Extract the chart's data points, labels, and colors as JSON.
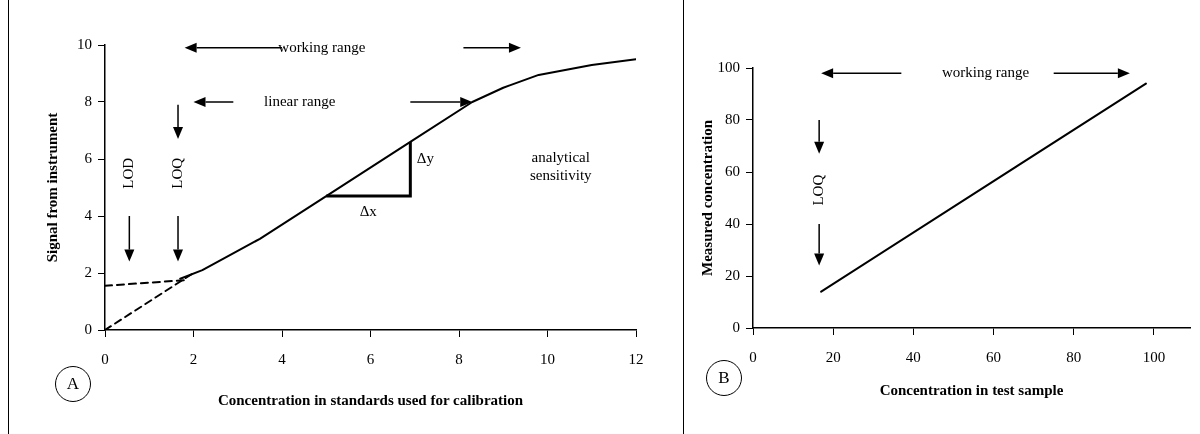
{
  "chart_data": [
    {
      "type": "line",
      "xlabel": "Concentration in standards used for calibration",
      "ylabel": "Signal from instrument",
      "xlim": [
        0,
        12
      ],
      "ylim": [
        0,
        10
      ],
      "xticks": [
        0,
        2,
        4,
        6,
        8,
        10,
        12
      ],
      "yticks": [
        0,
        2,
        4,
        6,
        8,
        10
      ],
      "series": [
        {
          "color": "#000000",
          "line_style": "solid",
          "x": [
            1.7,
            2.2,
            3.5,
            5,
            6.9,
            8.3,
            9,
            9.8,
            11,
            12
          ],
          "values": [
            1.8,
            2.1,
            3.2,
            4.7,
            6.6,
            8,
            8.5,
            8.95,
            9.3,
            9.5
          ]
        },
        {
          "color": "#000000",
          "line_style": "dashed",
          "x": [
            0,
            2
          ],
          "values": [
            0,
            2
          ]
        },
        {
          "color": "#000000",
          "line_style": "dashed",
          "x": [
            0,
            1.8
          ],
          "values": [
            1.55,
            1.75
          ]
        }
      ],
      "annotations": [
        "working range",
        "linear range",
        "LOD",
        "LOQ",
        "analytical sensitivity",
        "Δx",
        {
          "text": "Δy",
          "x": 6.9,
          "y": 6.6
        },
        "A"
      ]
    },
    {
      "type": "line",
      "xlabel": "Concentration in test sample",
      "ylabel": "Measured concentration",
      "xlim": [
        0,
        109
      ],
      "ylim": [
        0,
        100
      ],
      "xticks": [
        0,
        20,
        40,
        60,
        80,
        100
      ],
      "yticks": [
        0,
        20,
        40,
        60,
        80,
        100
      ],
      "series": [
        {
          "color": "#000000",
          "line_style": "solid",
          "x": [
            17,
            98
          ],
          "values": [
            14,
            94
          ]
        }
      ],
      "annotations": [
        "working range",
        "LOQ",
        "B"
      ]
    }
  ]
}
